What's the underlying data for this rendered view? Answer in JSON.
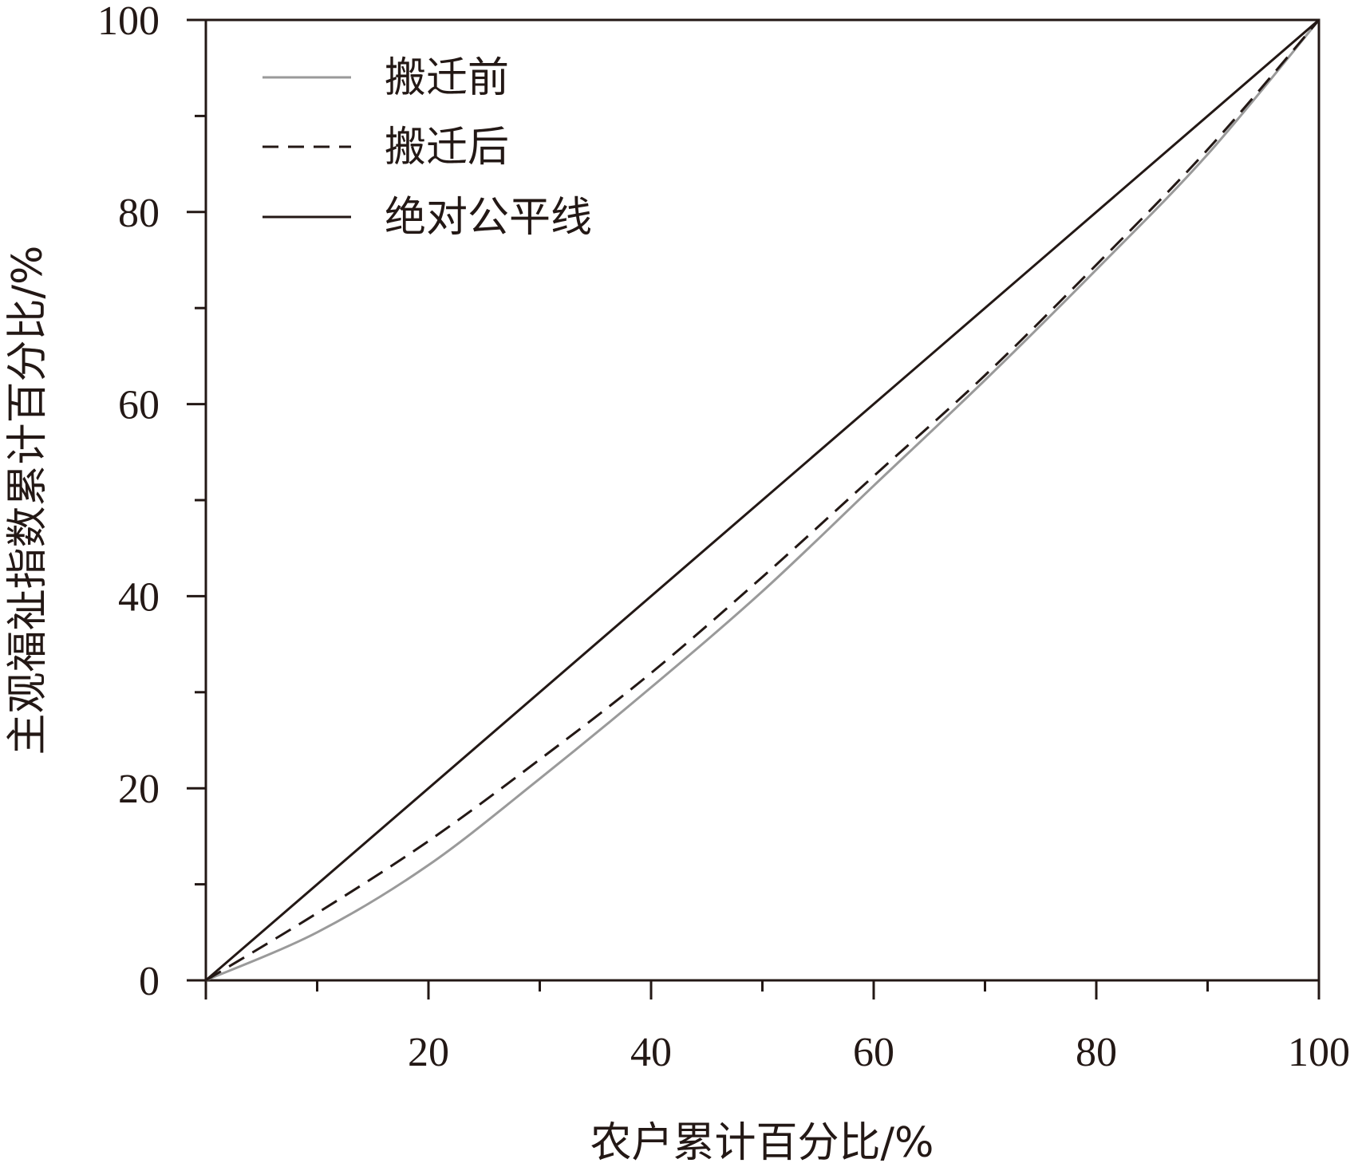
{
  "chart_data": {
    "type": "line",
    "xlabel": "农户累计百分比/%",
    "ylabel": "主观福祉指数累计百分比/%",
    "xlim": [
      0,
      100
    ],
    "ylim": [
      0,
      100
    ],
    "x_ticks": [
      20,
      40,
      60,
      80,
      100
    ],
    "y_ticks": [
      0,
      20,
      40,
      60,
      80,
      100
    ],
    "x_minor_ticks": [
      10,
      30,
      50,
      70,
      90
    ],
    "y_minor_ticks": [
      10,
      30,
      50,
      70,
      90
    ],
    "grid": false,
    "legend_position": "top-left",
    "series": [
      {
        "name": "搬迁前",
        "style": "solid",
        "color": "#9a9a9a",
        "x": [
          0,
          10,
          20,
          30,
          40,
          50,
          60,
          70,
          80,
          90,
          100
        ],
        "y": [
          0,
          5.0,
          12.0,
          21.0,
          30.5,
          40.5,
          51.5,
          62.5,
          74.0,
          86.0,
          100
        ]
      },
      {
        "name": "搬迁后",
        "style": "dashed",
        "color": "#231815",
        "x": [
          0,
          10,
          20,
          30,
          40,
          50,
          60,
          70,
          80,
          90,
          100
        ],
        "y": [
          0,
          7.0,
          14.5,
          23.0,
          32.0,
          42.0,
          52.5,
          63.0,
          74.5,
          86.5,
          100
        ]
      },
      {
        "name": "绝对公平线",
        "style": "solid",
        "color": "#231815",
        "x": [
          0,
          100
        ],
        "y": [
          0,
          100
        ]
      }
    ]
  }
}
